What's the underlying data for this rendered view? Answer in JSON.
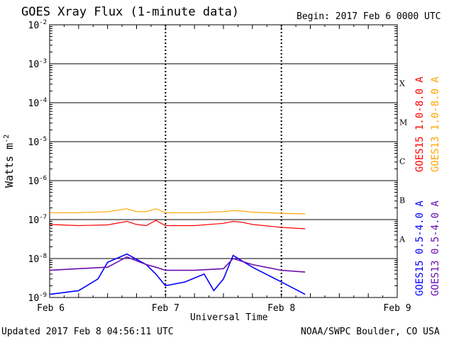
{
  "chart_data": {
    "type": "line",
    "title": "GOES Xray Flux (1-minute data)",
    "begin_label": "Begin:  2017 Feb 6 0000 UTC",
    "xlabel": "Universal Time",
    "ylabel": "Watts m",
    "ylabel_exponent": "-2",
    "x_ticks": [
      "Feb 6",
      "Feb 7",
      "Feb 8",
      "Feb 9"
    ],
    "xlim": [
      "2017-02-06 00:00",
      "2017-02-09 00:00"
    ],
    "y_scale": "log",
    "ylim": [
      1e-09,
      0.01
    ],
    "y_ticks": [
      {
        "base": "10",
        "exp": "-2"
      },
      {
        "base": "10",
        "exp": "-3"
      },
      {
        "base": "10",
        "exp": "-4"
      },
      {
        "base": "10",
        "exp": "-5"
      },
      {
        "base": "10",
        "exp": "-6"
      },
      {
        "base": "10",
        "exp": "-7"
      },
      {
        "base": "10",
        "exp": "-8"
      },
      {
        "base": "10",
        "exp": "-9"
      }
    ],
    "flare_classes": [
      "X",
      "M",
      "C",
      "B",
      "A"
    ],
    "series": [
      {
        "name": "GOES15 1.0-8.0 A",
        "color": "#ff0000",
        "x": [
          "2017-02-06 00:00",
          "2017-02-06 06:00",
          "2017-02-06 12:00",
          "2017-02-06 16:00",
          "2017-02-06 18:00",
          "2017-02-06 20:00",
          "2017-02-06 22:00",
          "2017-02-07 00:00",
          "2017-02-07 06:00",
          "2017-02-07 12:00",
          "2017-02-07 14:00",
          "2017-02-07 16:00",
          "2017-02-07 18:00",
          "2017-02-08 00:00",
          "2017-02-08 04:56"
        ],
        "values": [
          7.5e-08,
          7e-08,
          7.3e-08,
          9e-08,
          7.5e-08,
          7e-08,
          9.5e-08,
          7e-08,
          7e-08,
          8e-08,
          9e-08,
          8.5e-08,
          7.5e-08,
          6.3e-08,
          5.8e-08
        ]
      },
      {
        "name": "GOES13 1.0-8.0 A",
        "color": "#ffa500",
        "x": [
          "2017-02-06 00:00",
          "2017-02-06 06:00",
          "2017-02-06 12:00",
          "2017-02-06 16:00",
          "2017-02-06 18:00",
          "2017-02-06 20:00",
          "2017-02-06 22:00",
          "2017-02-07 00:00",
          "2017-02-07 06:00",
          "2017-02-07 12:00",
          "2017-02-07 14:00",
          "2017-02-07 16:00",
          "2017-02-07 18:00",
          "2017-02-08 00:00",
          "2017-02-08 04:56"
        ],
        "values": [
          1.5e-07,
          1.5e-07,
          1.6e-07,
          1.9e-07,
          1.6e-07,
          1.6e-07,
          1.9e-07,
          1.5e-07,
          1.5e-07,
          1.6e-07,
          1.7e-07,
          1.65e-07,
          1.55e-07,
          1.45e-07,
          1.4e-07
        ]
      },
      {
        "name": "GOES15 0.5-4.0 A",
        "color": "#0000ff",
        "x": [
          "2017-02-06 00:00",
          "2017-02-06 06:00",
          "2017-02-06 10:00",
          "2017-02-06 12:00",
          "2017-02-06 16:00",
          "2017-02-06 20:00",
          "2017-02-06 22:00",
          "2017-02-07 00:00",
          "2017-02-07 04:00",
          "2017-02-07 08:00",
          "2017-02-07 10:00",
          "2017-02-07 12:00",
          "2017-02-07 14:00",
          "2017-02-07 18:00",
          "2017-02-08 00:00",
          "2017-02-08 04:56"
        ],
        "values": [
          1.2e-09,
          1.5e-09,
          3e-09,
          8e-09,
          1.3e-08,
          7e-09,
          4e-09,
          2e-09,
          2.5e-09,
          4e-09,
          1.5e-09,
          3e-09,
          1.2e-08,
          6e-09,
          2.5e-09,
          1.2e-09
        ]
      },
      {
        "name": "GOES13 0.5-4.0 A",
        "color": "#6a0dad",
        "x": [
          "2017-02-06 00:00",
          "2017-02-06 06:00",
          "2017-02-06 12:00",
          "2017-02-06 16:00",
          "2017-02-06 20:00",
          "2017-02-06 22:00",
          "2017-02-07 00:00",
          "2017-02-07 06:00",
          "2017-02-07 12:00",
          "2017-02-07 14:00",
          "2017-02-07 18:00",
          "2017-02-08 00:00",
          "2017-02-08 04:56"
        ],
        "values": [
          5e-09,
          5.5e-09,
          6e-09,
          1.1e-08,
          7e-09,
          6e-09,
          5e-09,
          5e-09,
          5.5e-09,
          1e-08,
          7e-09,
          5e-09,
          4.5e-09
        ]
      }
    ]
  },
  "footer": {
    "updated": "Updated 2017 Feb  8 04:56:11 UTC",
    "credit": "NOAA/SWPC Boulder, CO USA"
  }
}
